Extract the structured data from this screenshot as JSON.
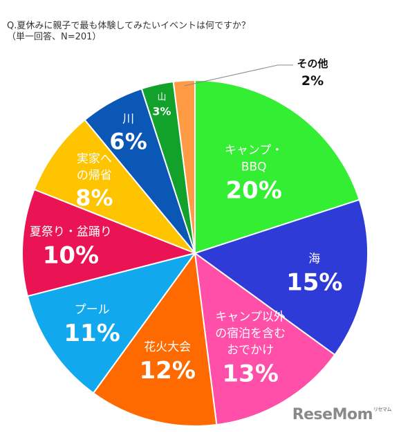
{
  "question": {
    "line1": "Q.夏休みに親子で最も体験してみたいイベントは何ですか？",
    "line2": "（単一回答、N=201）"
  },
  "chart_data": {
    "type": "pie",
    "title": "",
    "start_angle_deg": 0,
    "direction": "clockwise",
    "slices": [
      {
        "label": [
          "キャンプ・",
          "BBQ"
        ],
        "value": 20,
        "value_label": "20%",
        "color": "#33ee33",
        "text_color": "#ffffff"
      },
      {
        "label": [
          "海"
        ],
        "value": 15,
        "value_label": "15%",
        "color": "#2e3bd6",
        "text_color": "#ffffff"
      },
      {
        "label": [
          "キャンプ以外",
          "の宿泊を含む",
          "おでかけ"
        ],
        "value": 13,
        "value_label": "13%",
        "color": "#ff4fa8",
        "text_color": "#ffffff"
      },
      {
        "label": [
          "花火大会"
        ],
        "value": 12,
        "value_label": "12%",
        "color": "#ff6a00",
        "text_color": "#ffffff"
      },
      {
        "label": [
          "プール"
        ],
        "value": 11,
        "value_label": "11%",
        "color": "#12a8ee",
        "text_color": "#ffffff"
      },
      {
        "label": [
          "夏祭り・盆踊り"
        ],
        "value": 10,
        "value_label": "10%",
        "color": "#ea1455",
        "text_color": "#ffffff"
      },
      {
        "label": [
          "実家へ",
          "の帰省"
        ],
        "value": 8,
        "value_label": "8%",
        "color": "#ffc400",
        "text_color": "#ffffff"
      },
      {
        "label": [
          "川"
        ],
        "value": 6,
        "value_label": "6%",
        "color": "#0b57b6",
        "text_color": "#ffffff"
      },
      {
        "label": [
          "山"
        ],
        "value": 3,
        "value_label": "3%",
        "color": "#12a12a",
        "text_color": "#ffffff"
      },
      {
        "label": [
          "その他"
        ],
        "value": 2,
        "value_label": "2%",
        "color": "#ff9a45",
        "text_color": "#111111",
        "outside": true
      }
    ]
  },
  "logo": {
    "text": "ReseMom",
    "kana": "リセマム"
  }
}
